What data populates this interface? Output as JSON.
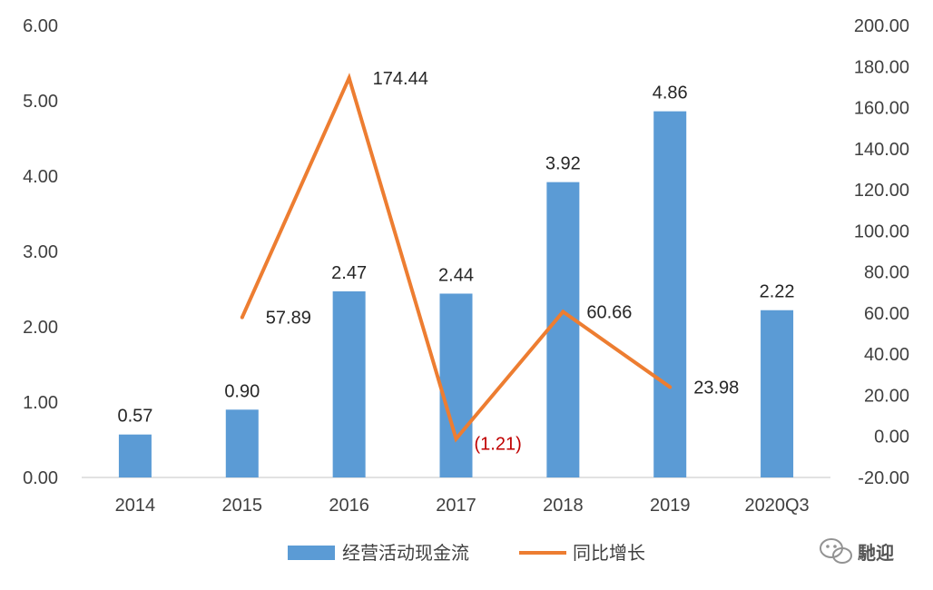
{
  "chart_data": {
    "type": "bar+line",
    "categories": [
      "2014",
      "2015",
      "2016",
      "2017",
      "2018",
      "2019",
      "2020Q3"
    ],
    "series": [
      {
        "name": "经营活动现金流",
        "kind": "bar",
        "axis": "left",
        "color": "#5b9bd5",
        "values": [
          0.57,
          0.9,
          2.47,
          2.44,
          3.92,
          4.86,
          2.22
        ],
        "labels": [
          "0.57",
          "0.90",
          "2.47",
          "2.44",
          "3.92",
          "4.86",
          "2.22"
        ]
      },
      {
        "name": "同比增长",
        "kind": "line",
        "axis": "right",
        "color": "#ed7d31",
        "values": [
          null,
          57.89,
          174.44,
          -1.21,
          60.66,
          23.98,
          null
        ],
        "labels": [
          "",
          "57.89",
          "174.44",
          "(1.21)",
          "60.66",
          "23.98",
          ""
        ]
      }
    ],
    "y_left": {
      "ylim": [
        0,
        6
      ],
      "ticks": [
        "0.00",
        "1.00",
        "2.00",
        "3.00",
        "4.00",
        "5.00",
        "6.00"
      ]
    },
    "y_right": {
      "ylim": [
        -20,
        200
      ],
      "ticks": [
        "-20.00",
        "0.00",
        "20.00",
        "40.00",
        "60.00",
        "80.00",
        "100.00",
        "120.00",
        "140.00",
        "160.00",
        "180.00",
        "200.00"
      ]
    },
    "grid": false,
    "legend_position": "bottom",
    "negative_label_color": "#c00000"
  },
  "watermark": {
    "icon": "wechat-icon",
    "text": "馳迎"
  }
}
